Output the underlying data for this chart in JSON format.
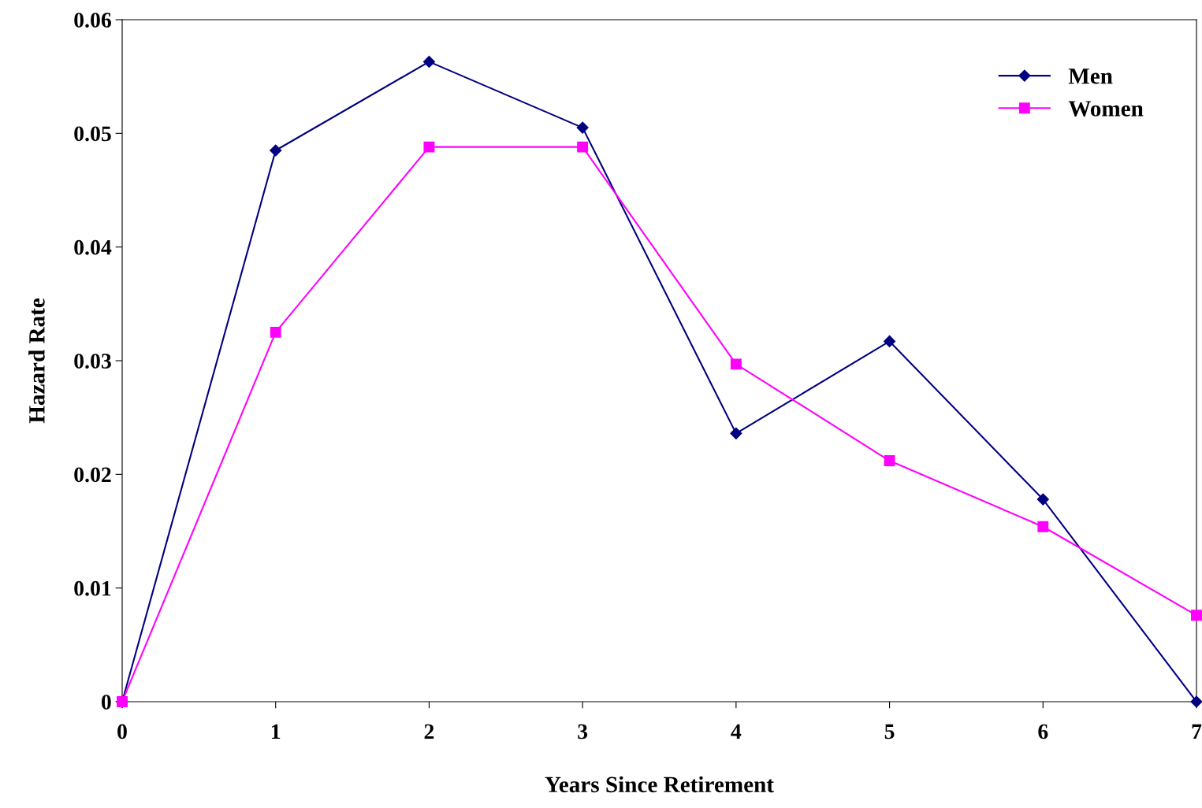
{
  "chart_data": {
    "type": "line",
    "xlabel": "Years Since Retirement",
    "ylabel": "Hazard Rate",
    "x": [
      0,
      1,
      2,
      3,
      4,
      5,
      6,
      7
    ],
    "series": [
      {
        "name": "Men",
        "color": "#000080",
        "marker": "diamond",
        "values": [
          0,
          0.0485,
          0.0563,
          0.0505,
          0.0236,
          0.0317,
          0.0178,
          0
        ]
      },
      {
        "name": "Women",
        "color": "#ff00ff",
        "marker": "square",
        "values": [
          0,
          0.0325,
          0.0488,
          0.0488,
          0.0297,
          0.0212,
          0.0154,
          0.0076
        ]
      }
    ],
    "xlim": [
      0,
      7
    ],
    "xticks": [
      0,
      1,
      2,
      3,
      4,
      5,
      6,
      7
    ],
    "ylim": [
      0,
      0.06
    ],
    "yticks": [
      0,
      0.01,
      0.02,
      0.03,
      0.04,
      0.05,
      0.06
    ],
    "grid": false,
    "legend": "top right",
    "line_style": "solid"
  }
}
